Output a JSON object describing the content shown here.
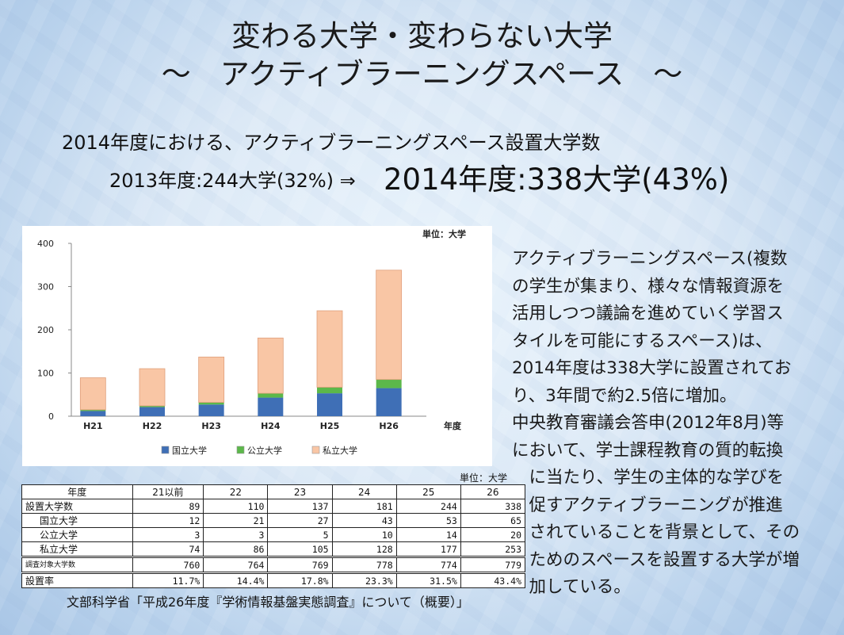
{
  "slide": {
    "title_line1": "変わる大学・変わらない大学",
    "title_line2": "～　アクティブラーニングスペース　～",
    "subtitle": "2014年度における、アクティブラーニングスペース設置大学数",
    "stat_2013": "2013年度:244大学(32%) ⇒",
    "stat_2014": "2014年度:338大学(43%)"
  },
  "chart_data": {
    "type": "bar",
    "stacked": true,
    "unit_label": "単位：大学",
    "xlabel": "年度",
    "categories": [
      "H21",
      "H22",
      "H23",
      "H24",
      "H25",
      "H26"
    ],
    "series": [
      {
        "name": "国立大学",
        "values": [
          12,
          21,
          27,
          43,
          53,
          65
        ],
        "color": "#3f6fb6"
      },
      {
        "name": "公立大学",
        "values": [
          3,
          3,
          5,
          10,
          14,
          20
        ],
        "color": "#5cb84a"
      },
      {
        "name": "私立大学",
        "values": [
          74,
          86,
          105,
          128,
          177,
          253
        ],
        "color": "#f9c6a5"
      }
    ],
    "ylim": [
      0,
      400
    ],
    "yticks": [
      0,
      100,
      200,
      300,
      400
    ],
    "grid": false,
    "legend": "bottom"
  },
  "description": {
    "lines": [
      "アクティブラーニングスペース(複数",
      "の学生が集まり、様々な情報資源を",
      "活用しつつ議論を進めていく学習ス",
      "タイルを可能にするスペース)は、",
      "2014年度は338大学に設置されてお",
      "り、3年間で約2.5倍に増加。",
      "中央教育審議会答申(2012年8月)等",
      "において、学士課程教育の質的転換",
      "　に当たり、学生の主体的な学びを",
      "　促すアクティブラーニングが推進",
      "　されていることを背景として、その",
      "　ためのスペースを設置する大学が増",
      "　加している。"
    ]
  },
  "table": {
    "unit": "単位：大学",
    "headers": [
      "年度",
      "21以前",
      "22",
      "23",
      "24",
      "25",
      "26"
    ],
    "rows": [
      {
        "label": "設置大学数",
        "values": [
          "89",
          "110",
          "137",
          "181",
          "244",
          "338"
        ]
      },
      {
        "label": "国立大学",
        "values": [
          "12",
          "21",
          "27",
          "43",
          "53",
          "65"
        ]
      },
      {
        "label": "公立大学",
        "values": [
          "3",
          "3",
          "5",
          "10",
          "14",
          "20"
        ]
      },
      {
        "label": "私立大学",
        "values": [
          "74",
          "86",
          "105",
          "128",
          "177",
          "253"
        ]
      },
      {
        "label": "調査対象大学数",
        "values": [
          "760",
          "764",
          "769",
          "778",
          "774",
          "779"
        ]
      },
      {
        "label": "設置率",
        "values": [
          "11.7%",
          "14.4%",
          "17.8%",
          "23.3%",
          "31.5%",
          "43.4%"
        ]
      }
    ]
  },
  "source": "文部科学省「平成26年度『学術情報基盤実態調査』について（概要）」"
}
